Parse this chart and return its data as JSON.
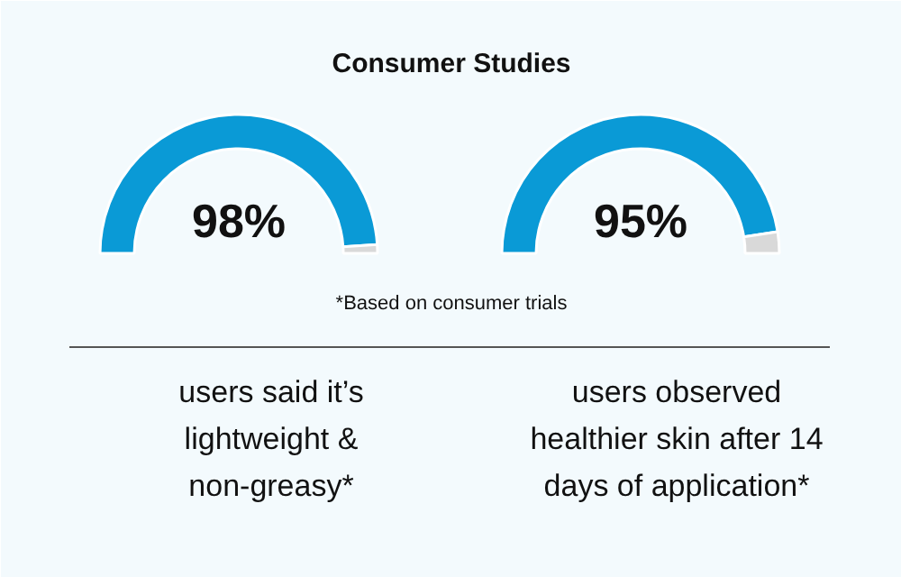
{
  "chart_data": [
    {
      "type": "donut",
      "title": "Consumer Studies",
      "categories": [
        null,
        null
      ],
      "values": [
        98,
        2
      ],
      "colors": [
        "#0a9ad6",
        "#d9d9d9"
      ],
      "value_labels": [
        "98%",
        null
      ],
      "annotations": [
        "users said it’s lightweight & non-greasy*",
        "*Based on consumer trials"
      ]
    },
    {
      "type": "donut",
      "categories": [
        null,
        null
      ],
      "values": [
        95,
        5
      ],
      "colors": [
        "#0a9ad6",
        "#d9d9d9"
      ],
      "value_labels": [
        "95%",
        null
      ],
      "annotations": [
        "users observed healthier skin after 14 days of application*"
      ]
    }
  ]
}
